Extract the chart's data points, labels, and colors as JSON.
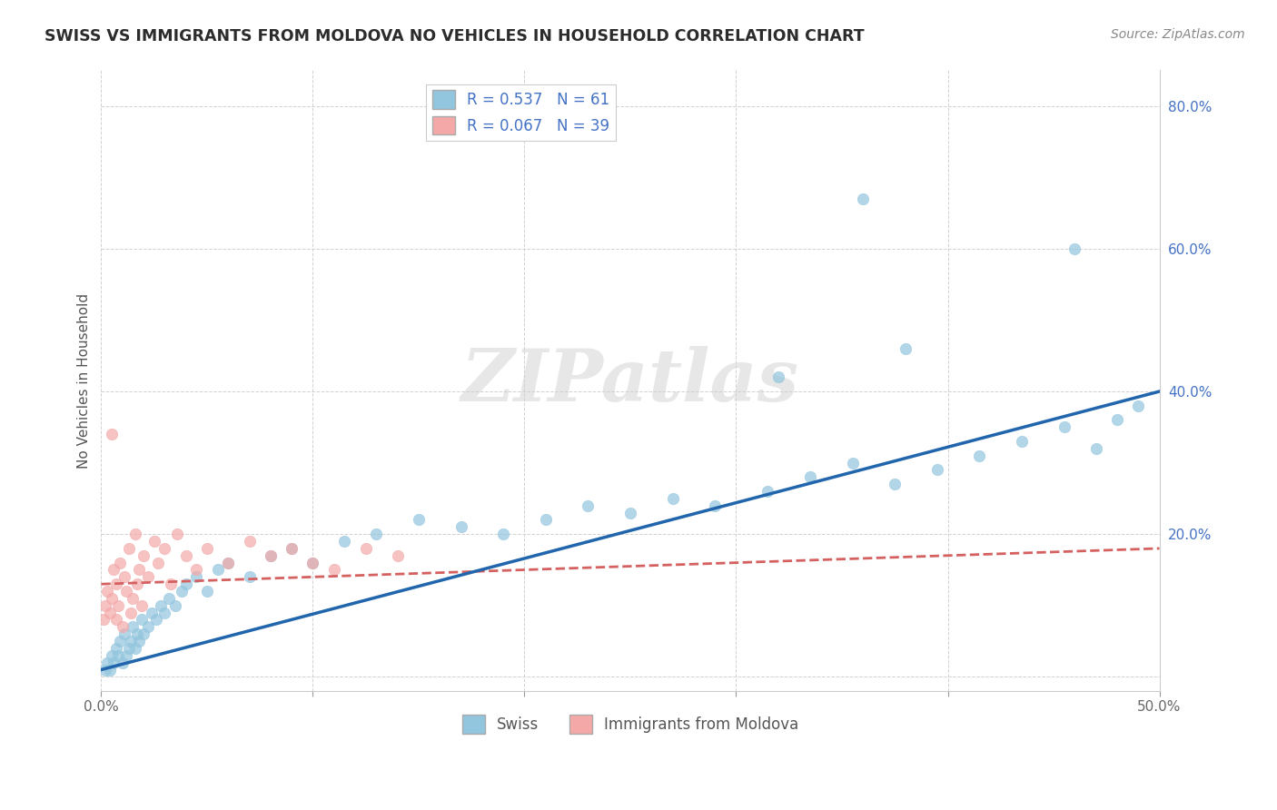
{
  "title": "SWISS VS IMMIGRANTS FROM MOLDOVA NO VEHICLES IN HOUSEHOLD CORRELATION CHART",
  "source": "Source: ZipAtlas.com",
  "ylabel": "No Vehicles in Household",
  "x_min": 0.0,
  "x_max": 0.5,
  "y_min": -0.02,
  "y_max": 0.85,
  "x_ticks": [
    0.0,
    0.1,
    0.2,
    0.3,
    0.4,
    0.5
  ],
  "x_tick_labels": [
    "0.0%",
    "",
    "",
    "",
    "",
    "50.0%"
  ],
  "y_ticks": [
    0.0,
    0.2,
    0.4,
    0.6,
    0.8
  ],
  "y_tick_labels": [
    "",
    "20.0%",
    "40.0%",
    "60.0%",
    "80.0%"
  ],
  "legend_label1": "R = 0.537   N = 61",
  "legend_label2": "R = 0.067   N = 39",
  "legend_bottom_label1": "Swiss",
  "legend_bottom_label2": "Immigrants from Moldova",
  "blue_color": "#92c5de",
  "pink_color": "#f4a8a8",
  "blue_line_color": "#2166ac",
  "pink_line_color": "#d46060",
  "watermark": "ZIPatlas",
  "blue_line_start_y": 0.01,
  "blue_line_end_y": 0.4,
  "pink_line_start_y": 0.13,
  "pink_line_end_y": 0.18,
  "swiss_x": [
    0.002,
    0.003,
    0.004,
    0.005,
    0.006,
    0.007,
    0.008,
    0.009,
    0.01,
    0.011,
    0.012,
    0.013,
    0.014,
    0.015,
    0.016,
    0.017,
    0.018,
    0.019,
    0.02,
    0.022,
    0.024,
    0.026,
    0.028,
    0.03,
    0.032,
    0.035,
    0.038,
    0.04,
    0.045,
    0.05,
    0.055,
    0.06,
    0.07,
    0.08,
    0.09,
    0.1,
    0.115,
    0.13,
    0.15,
    0.17,
    0.19,
    0.21,
    0.23,
    0.25,
    0.27,
    0.29,
    0.315,
    0.335,
    0.355,
    0.375,
    0.395,
    0.415,
    0.435,
    0.455,
    0.47,
    0.48,
    0.49,
    0.36,
    0.46,
    0.38,
    0.32
  ],
  "swiss_y": [
    0.01,
    0.02,
    0.01,
    0.03,
    0.02,
    0.04,
    0.03,
    0.05,
    0.02,
    0.06,
    0.03,
    0.04,
    0.05,
    0.07,
    0.04,
    0.06,
    0.05,
    0.08,
    0.06,
    0.07,
    0.09,
    0.08,
    0.1,
    0.09,
    0.11,
    0.1,
    0.12,
    0.13,
    0.14,
    0.12,
    0.15,
    0.16,
    0.14,
    0.17,
    0.18,
    0.16,
    0.19,
    0.2,
    0.22,
    0.21,
    0.2,
    0.22,
    0.24,
    0.23,
    0.25,
    0.24,
    0.26,
    0.28,
    0.3,
    0.27,
    0.29,
    0.31,
    0.33,
    0.35,
    0.32,
    0.36,
    0.38,
    0.67,
    0.6,
    0.46,
    0.42
  ],
  "moldova_x": [
    0.001,
    0.002,
    0.003,
    0.004,
    0.005,
    0.006,
    0.007,
    0.007,
    0.008,
    0.009,
    0.01,
    0.011,
    0.012,
    0.013,
    0.014,
    0.015,
    0.016,
    0.017,
    0.018,
    0.019,
    0.02,
    0.022,
    0.025,
    0.027,
    0.03,
    0.033,
    0.036,
    0.04,
    0.045,
    0.05,
    0.06,
    0.07,
    0.08,
    0.09,
    0.1,
    0.11,
    0.125,
    0.14,
    0.005
  ],
  "moldova_y": [
    0.08,
    0.1,
    0.12,
    0.09,
    0.11,
    0.15,
    0.08,
    0.13,
    0.1,
    0.16,
    0.07,
    0.14,
    0.12,
    0.18,
    0.09,
    0.11,
    0.2,
    0.13,
    0.15,
    0.1,
    0.17,
    0.14,
    0.19,
    0.16,
    0.18,
    0.13,
    0.2,
    0.17,
    0.15,
    0.18,
    0.16,
    0.19,
    0.17,
    0.18,
    0.16,
    0.15,
    0.18,
    0.17,
    0.34
  ]
}
